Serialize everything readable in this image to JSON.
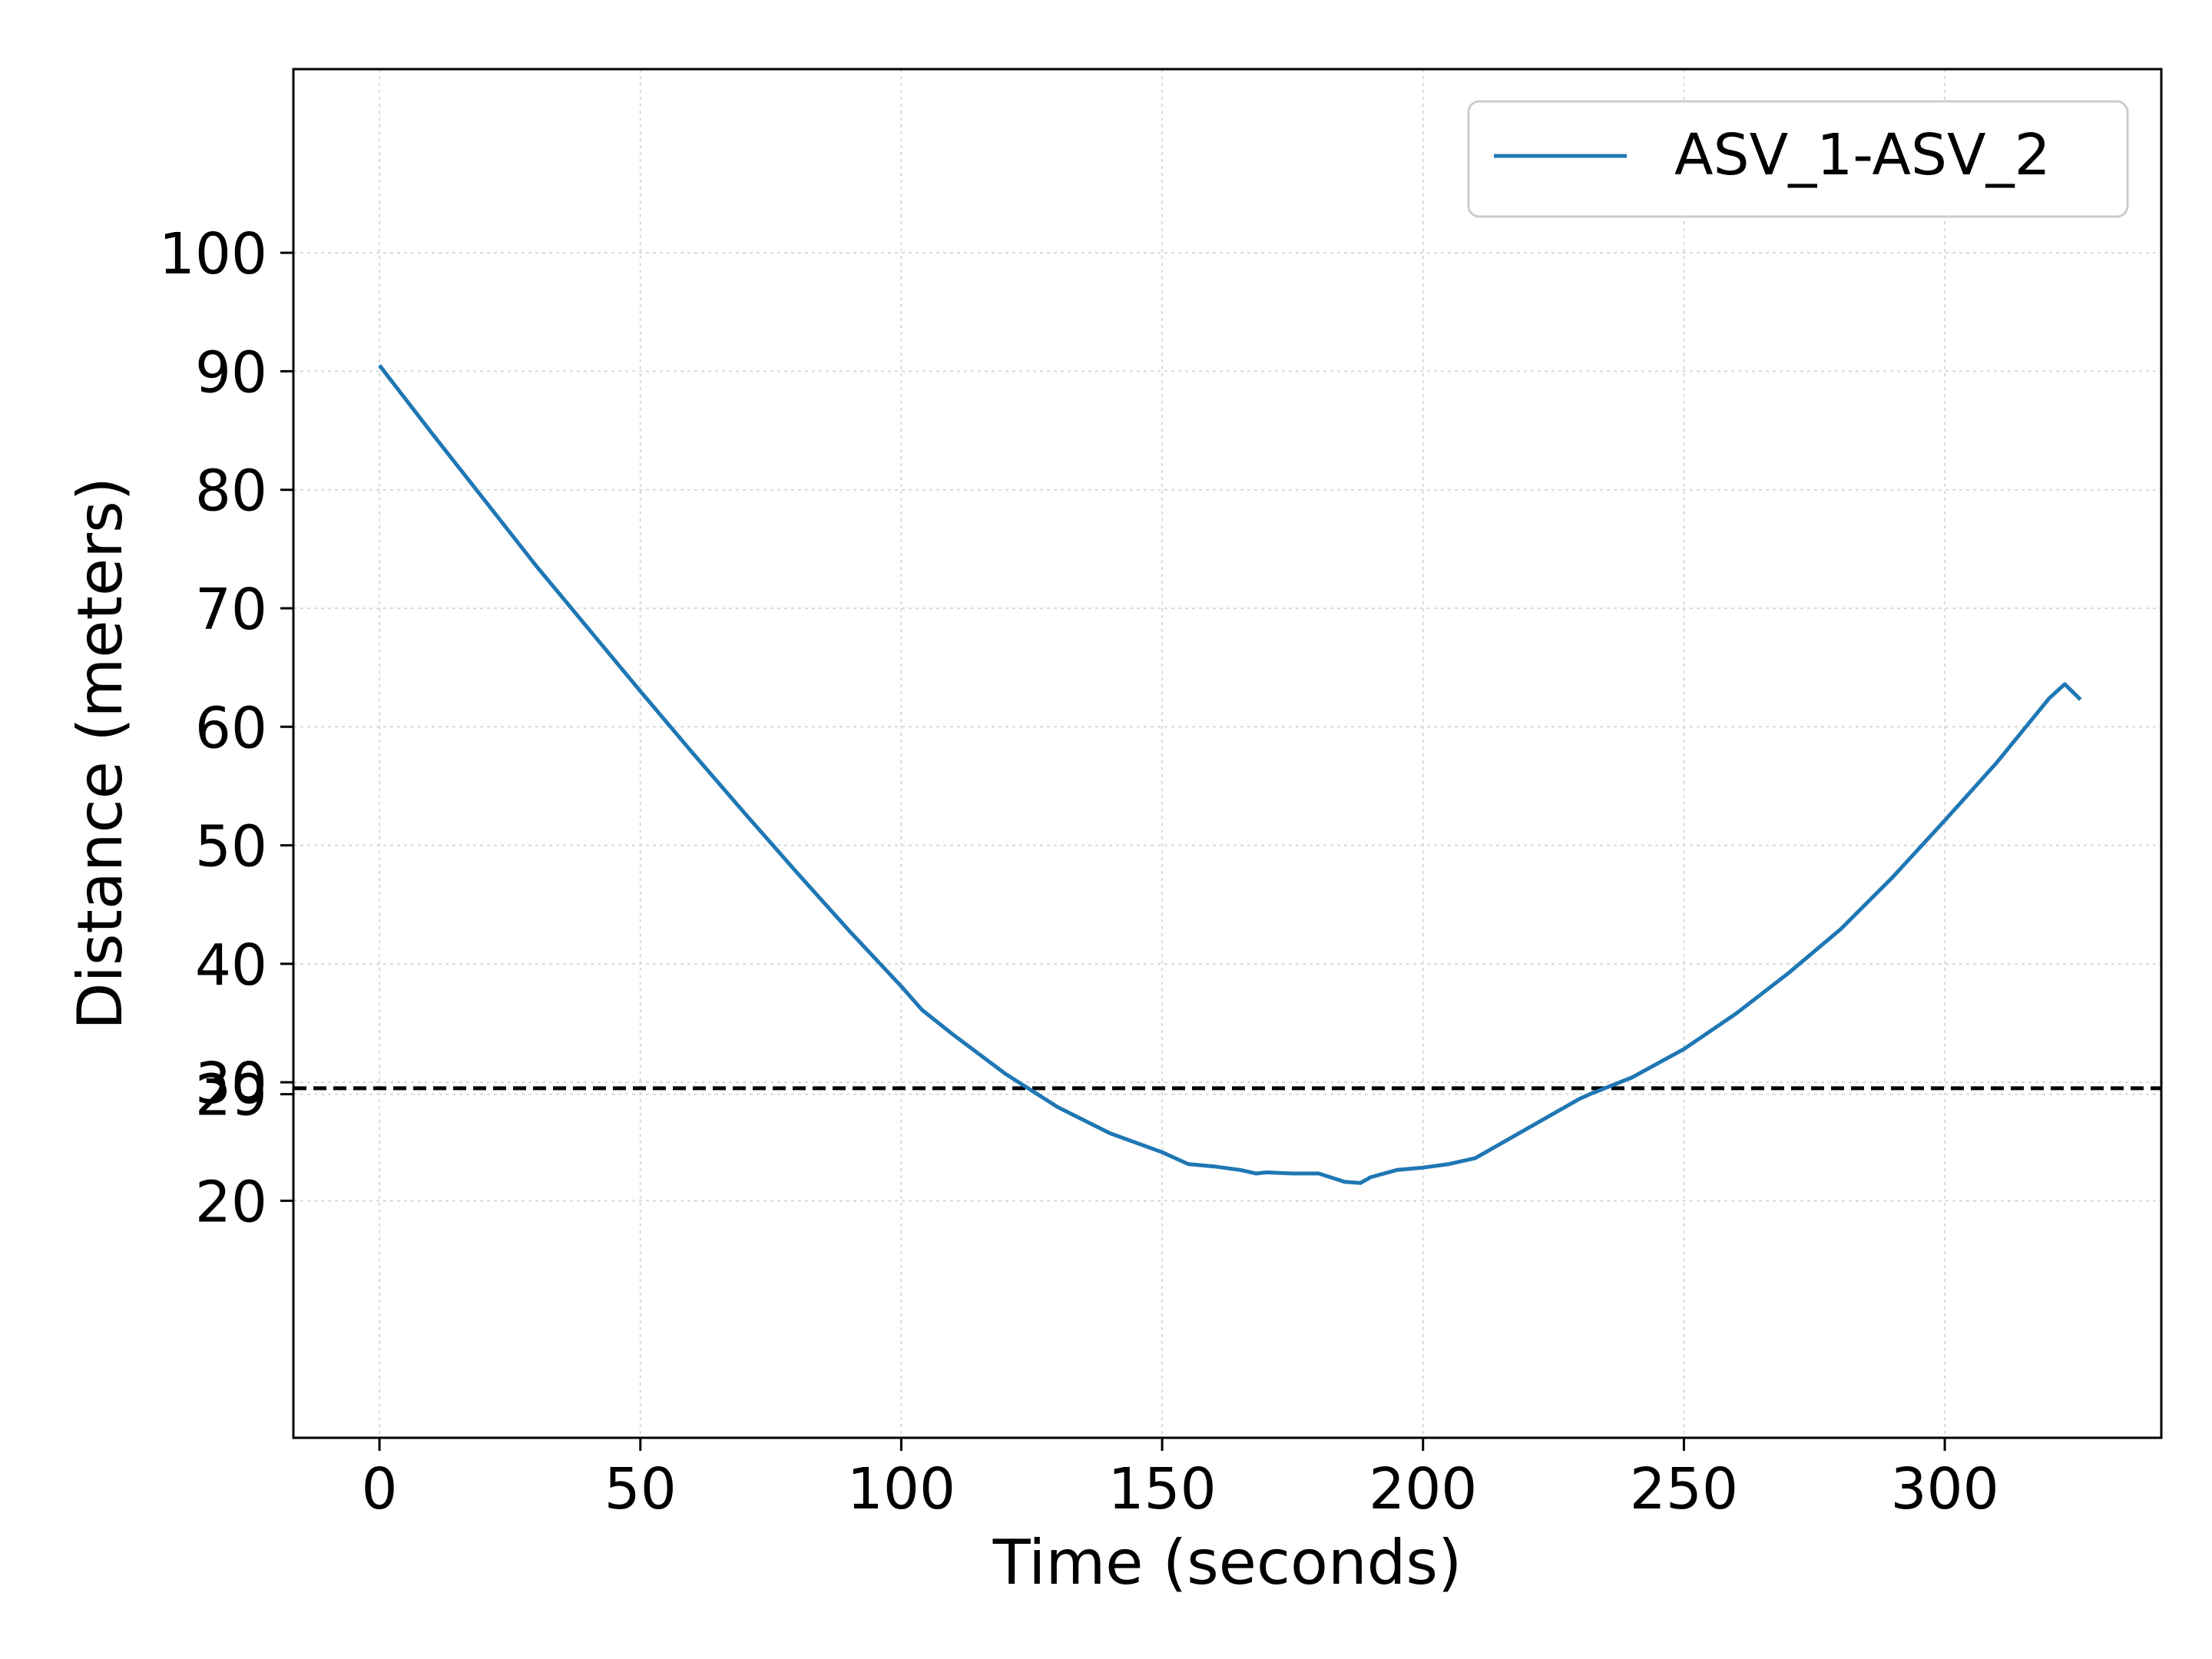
{
  "chart_data": {
    "type": "line",
    "title": "",
    "xlabel": "Time (seconds)",
    "ylabel": "Distance (meters)",
    "xlim": [
      -16.5,
      341.5
    ],
    "ylim": [
      0,
      115.5
    ],
    "xticks": [
      0,
      50,
      100,
      150,
      200,
      250,
      300
    ],
    "yticks": [
      20,
      29,
      30,
      40,
      50,
      60,
      70,
      80,
      90,
      100
    ],
    "grid": true,
    "legend_position": "top-right",
    "reference_line": {
      "y": 29.5,
      "style": "dashed",
      "color": "#000000"
    },
    "series": [
      {
        "name": "ASV_1-ASV_2",
        "color": "#1f77b4",
        "x": [
          0,
          10,
          20,
          30,
          40,
          50,
          60,
          70,
          80,
          90,
          100,
          104,
          110,
          120,
          130,
          140,
          150,
          155,
          160,
          165,
          168,
          170,
          175,
          180,
          185,
          188,
          190,
          195,
          200,
          205,
          210,
          220,
          230,
          232,
          240,
          250,
          260,
          270,
          280,
          290,
          300,
          310,
          320,
          323,
          326
        ],
        "y": [
          90.5,
          84.8,
          79.2,
          73.6,
          68.3,
          63.0,
          57.8,
          52.7,
          47.7,
          42.8,
          38.1,
          36.1,
          34.0,
          30.7,
          27.9,
          25.7,
          24.1,
          23.1,
          22.9,
          22.6,
          22.3,
          22.4,
          22.3,
          22.3,
          21.6,
          21.5,
          22.0,
          22.6,
          22.8,
          23.1,
          23.6,
          26.1,
          28.6,
          29.0,
          30.4,
          32.8,
          35.8,
          39.2,
          42.9,
          47.3,
          52.1,
          57.0,
          62.4,
          63.6,
          62.3
        ]
      }
    ]
  }
}
